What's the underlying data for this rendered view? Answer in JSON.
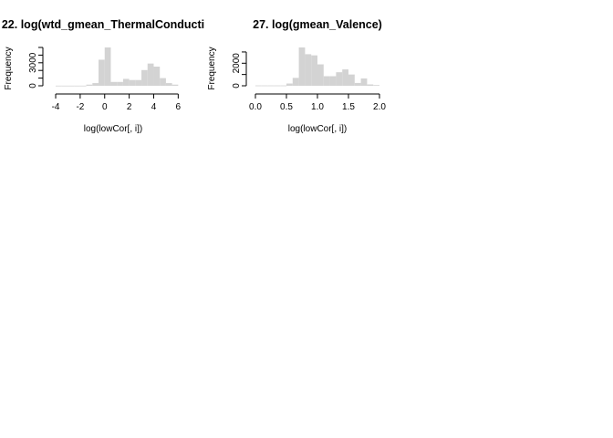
{
  "chart_data": [
    {
      "type": "bar",
      "title": "22. log(wtd_gmean_ThermalConducti",
      "xlabel": "log(lowCor[, i])",
      "ylabel": "Frequency",
      "xlim": [
        -4.3,
        5.9
      ],
      "ylim": [
        0,
        5000
      ],
      "xticks": [
        -4,
        -2,
        0,
        2,
        4,
        6
      ],
      "xtick_labels": [
        "-4",
        "-2",
        "0",
        "2",
        "4",
        "6"
      ],
      "yticks": [
        0,
        3000
      ],
      "ytick_labels": [
        "0",
        "3000"
      ],
      "ytick_marks": [
        0,
        1000,
        2000,
        3000,
        4000,
        5000
      ],
      "bins": [
        {
          "x0": -4.0,
          "x1": -3.5,
          "count": 20
        },
        {
          "x0": -3.5,
          "x1": -3.0,
          "count": 20
        },
        {
          "x0": -3.0,
          "x1": -2.5,
          "count": 20
        },
        {
          "x0": -2.5,
          "x1": -2.0,
          "count": 20
        },
        {
          "x0": -2.0,
          "x1": -1.5,
          "count": 20
        },
        {
          "x0": -1.5,
          "x1": -1.0,
          "count": 150
        },
        {
          "x0": -1.0,
          "x1": -0.5,
          "count": 350
        },
        {
          "x0": -0.5,
          "x1": 0.0,
          "count": 3400
        },
        {
          "x0": 0.0,
          "x1": 0.5,
          "count": 5000
        },
        {
          "x0": 0.5,
          "x1": 1.0,
          "count": 500
        },
        {
          "x0": 1.0,
          "x1": 1.5,
          "count": 500
        },
        {
          "x0": 1.5,
          "x1": 2.0,
          "count": 900
        },
        {
          "x0": 2.0,
          "x1": 2.5,
          "count": 750
        },
        {
          "x0": 2.5,
          "x1": 3.0,
          "count": 750
        },
        {
          "x0": 3.0,
          "x1": 3.5,
          "count": 2050
        },
        {
          "x0": 3.5,
          "x1": 4.0,
          "count": 2900
        },
        {
          "x0": 4.0,
          "x1": 4.5,
          "count": 2500
        },
        {
          "x0": 4.5,
          "x1": 5.0,
          "count": 1000
        },
        {
          "x0": 5.0,
          "x1": 5.5,
          "count": 350
        },
        {
          "x0": 5.5,
          "x1": 6.0,
          "count": 150
        }
      ]
    },
    {
      "type": "bar",
      "title": "27. log(gmean_Valence)",
      "xlabel": "log(lowCor[, i])",
      "ylabel": "Frequency",
      "xlim": [
        0.0,
        2.0
      ],
      "ylim": [
        0,
        3400
      ],
      "xticks": [
        0.0,
        0.5,
        1.0,
        1.5,
        2.0
      ],
      "xtick_labels": [
        "0.0",
        "0.5",
        "1.0",
        "1.5",
        "2.0"
      ],
      "yticks": [
        0,
        2000
      ],
      "ytick_labels": [
        "0",
        "2000"
      ],
      "ytick_marks": [
        0,
        1000,
        2000,
        3000
      ],
      "bins": [
        {
          "x0": 0.0,
          "x1": 0.1,
          "count": 30
        },
        {
          "x0": 0.1,
          "x1": 0.2,
          "count": 30
        },
        {
          "x0": 0.2,
          "x1": 0.3,
          "count": 30
        },
        {
          "x0": 0.3,
          "x1": 0.4,
          "count": 30
        },
        {
          "x0": 0.4,
          "x1": 0.5,
          "count": 30
        },
        {
          "x0": 0.5,
          "x1": 0.6,
          "count": 200
        },
        {
          "x0": 0.6,
          "x1": 0.7,
          "count": 700
        },
        {
          "x0": 0.7,
          "x1": 0.8,
          "count": 3400
        },
        {
          "x0": 0.8,
          "x1": 0.9,
          "count": 2800
        },
        {
          "x0": 0.9,
          "x1": 1.0,
          "count": 2700
        },
        {
          "x0": 1.0,
          "x1": 1.1,
          "count": 1900
        },
        {
          "x0": 1.1,
          "x1": 1.2,
          "count": 850
        },
        {
          "x0": 1.2,
          "x1": 1.3,
          "count": 850
        },
        {
          "x0": 1.3,
          "x1": 1.4,
          "count": 1200
        },
        {
          "x0": 1.4,
          "x1": 1.5,
          "count": 1450
        },
        {
          "x0": 1.5,
          "x1": 1.6,
          "count": 1000
        },
        {
          "x0": 1.6,
          "x1": 1.7,
          "count": 250
        },
        {
          "x0": 1.7,
          "x1": 1.8,
          "count": 650
        },
        {
          "x0": 1.8,
          "x1": 1.9,
          "count": 120
        },
        {
          "x0": 1.9,
          "x1": 2.0,
          "count": 60
        }
      ]
    }
  ]
}
